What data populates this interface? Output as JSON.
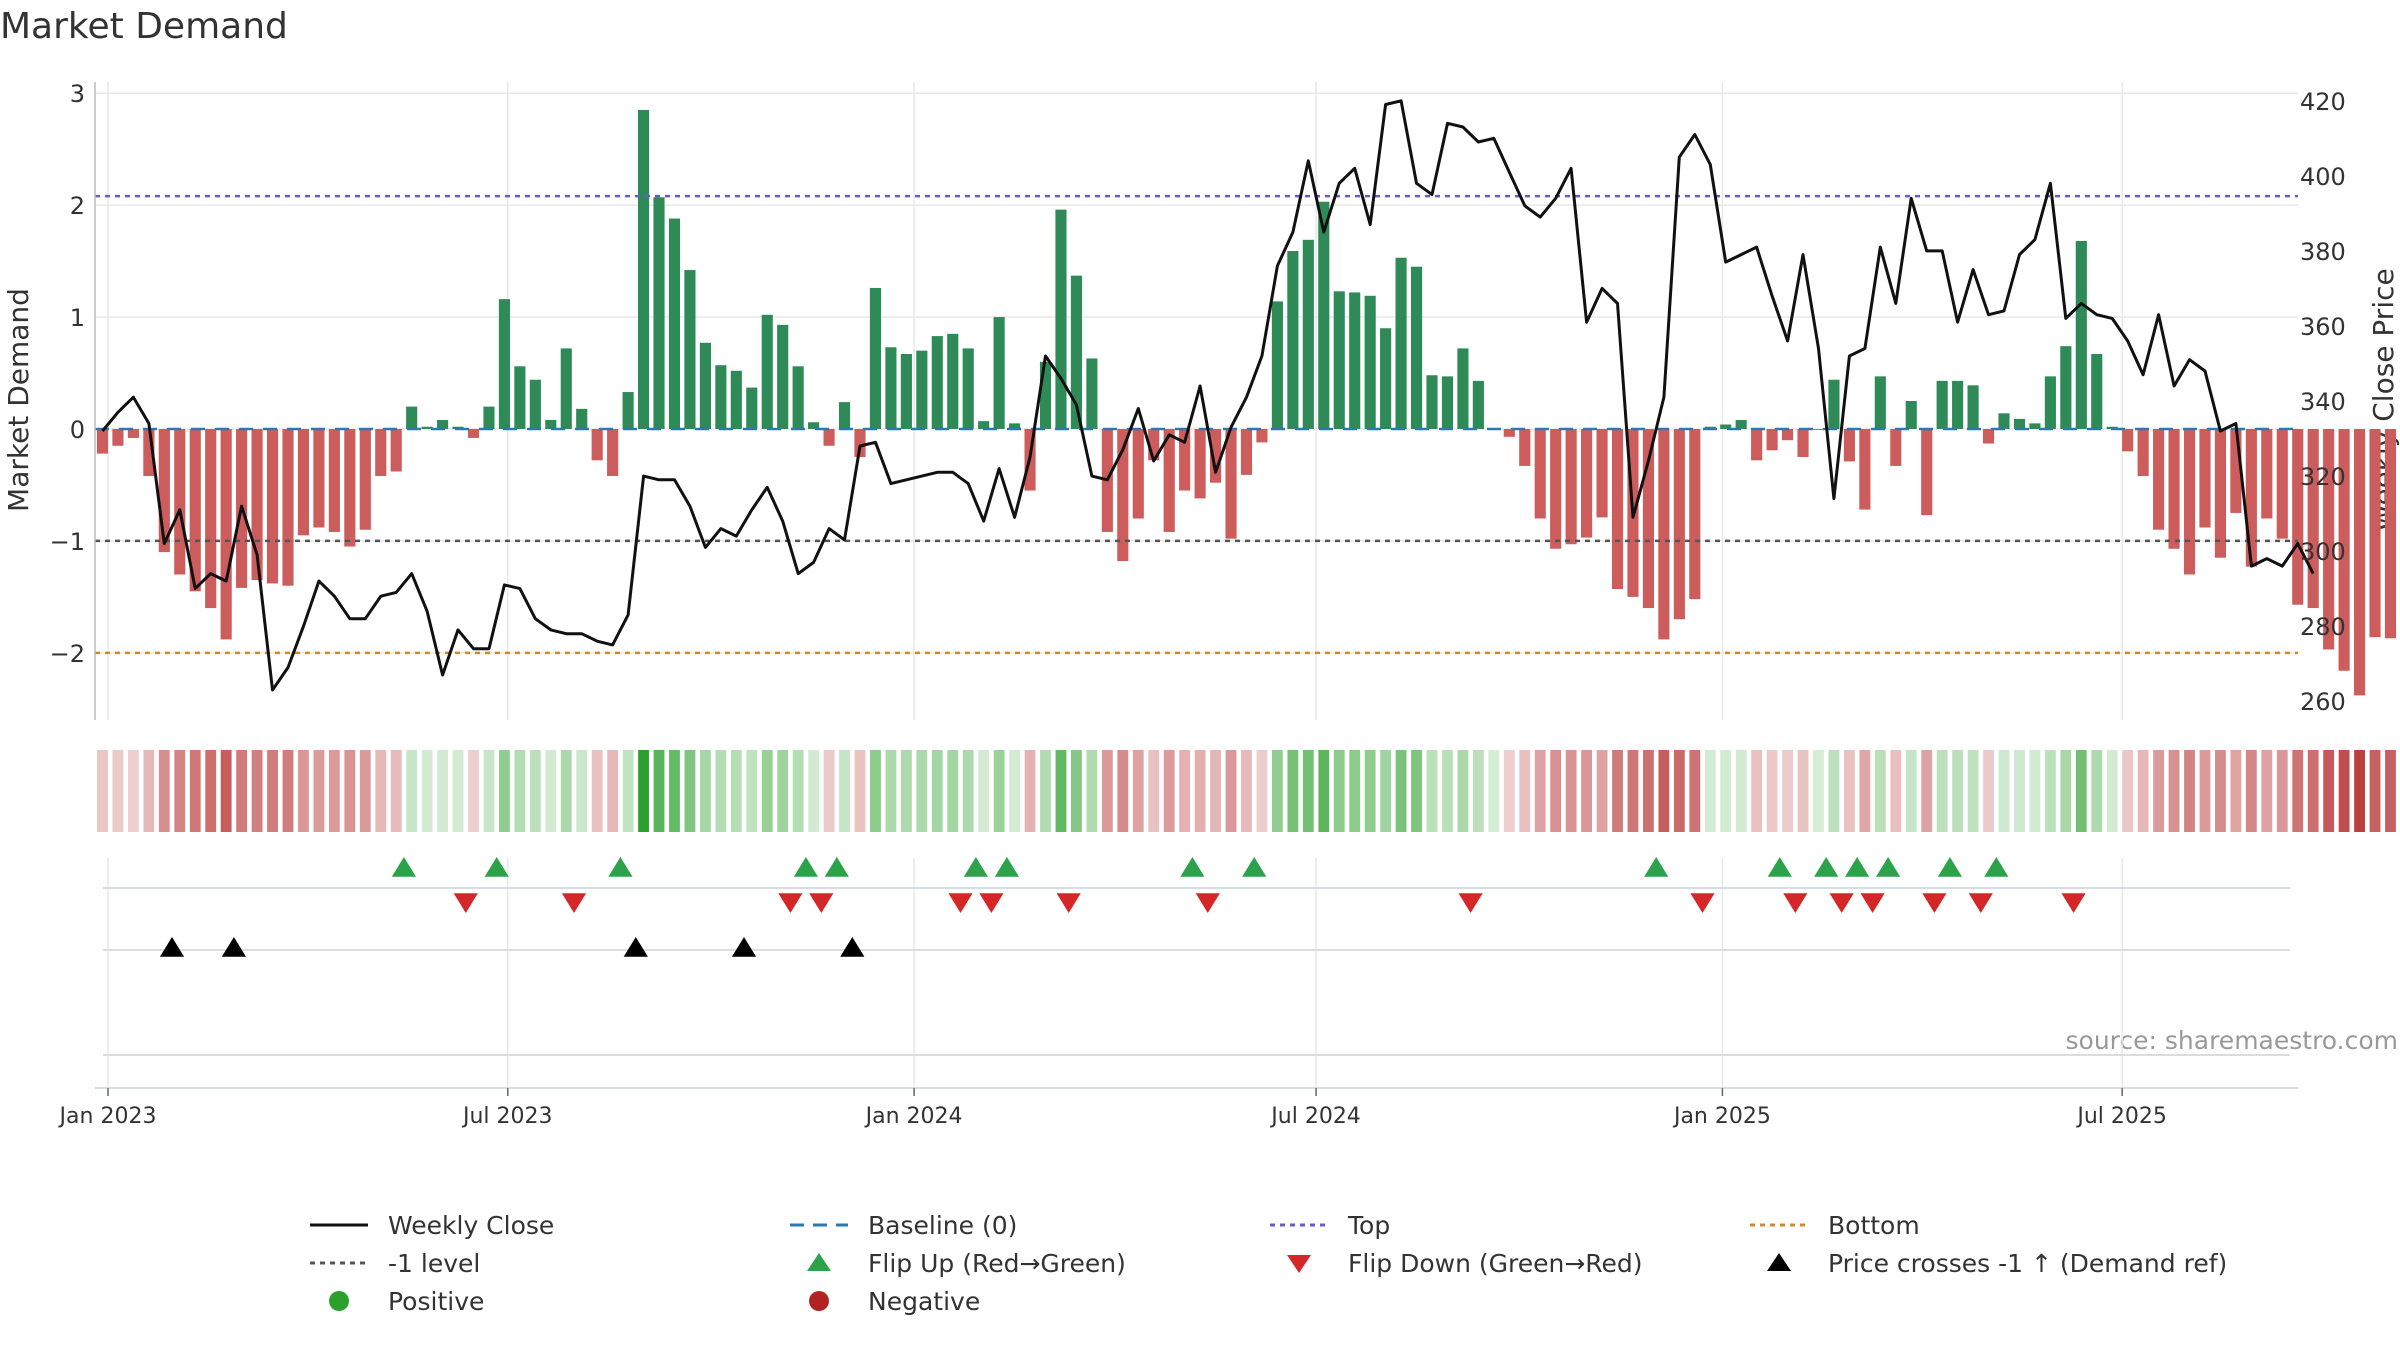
{
  "chart_data": {
    "type": "bar",
    "title": "Market Demand",
    "ylabel": "Market Demand",
    "y2label": "Weekly Close Price",
    "ylim": [
      -2.6,
      3.1
    ],
    "y2lim": [
      255,
      425
    ],
    "yticks": [
      -2,
      -1,
      0,
      1,
      2,
      3
    ],
    "y2ticks": [
      260,
      280,
      300,
      320,
      340,
      360,
      380,
      400,
      420
    ],
    "x_start": "2023-01-01",
    "x_end": "2025-09-15",
    "x_ticks": [
      {
        "date": "2023-01-01",
        "label": "Jan 2023"
      },
      {
        "date": "2023-07-01",
        "label": "Jul 2023"
      },
      {
        "date": "2024-01-01",
        "label": "Jan 2024"
      },
      {
        "date": "2024-07-01",
        "label": "Jul 2024"
      },
      {
        "date": "2025-01-01",
        "label": "Jan 2025"
      },
      {
        "date": "2025-07-01",
        "label": "Jul 2025"
      }
    ],
    "first_week": "2022-12-26",
    "demand": [
      -0.22,
      -0.15,
      -0.08,
      -0.42,
      -1.1,
      -1.3,
      -1.45,
      -1.6,
      -1.88,
      -1.42,
      -1.35,
      -1.38,
      -1.4,
      -0.95,
      -0.88,
      -0.92,
      -1.05,
      -0.9,
      -0.42,
      -0.38,
      0.2,
      0.02,
      0.08,
      0.02,
      -0.08,
      0.2,
      1.16,
      0.56,
      0.44,
      0.08,
      0.72,
      0.18,
      -0.28,
      -0.42,
      0.33,
      2.85,
      2.07,
      1.88,
      1.42,
      0.77,
      0.57,
      0.52,
      0.37,
      1.02,
      0.93,
      0.56,
      0.06,
      -0.15,
      0.24,
      -0.25,
      1.26,
      0.73,
      0.67,
      0.7,
      0.83,
      0.85,
      0.72,
      0.07,
      1.0,
      0.05,
      -0.55,
      0.6,
      1.96,
      1.37,
      0.63,
      -0.92,
      -1.18,
      -0.8,
      -0.28,
      -0.92,
      -0.55,
      -0.62,
      -0.48,
      -0.98,
      -0.41,
      -0.12,
      1.14,
      1.59,
      1.69,
      2.03,
      1.23,
      1.22,
      1.19,
      0.9,
      1.53,
      1.45,
      0.48,
      0.47,
      0.72,
      0.43,
      0.0,
      -0.07,
      -0.33,
      -0.8,
      -1.07,
      -1.03,
      -0.97,
      -0.79,
      -1.43,
      -1.5,
      -1.6,
      -1.88,
      -1.7,
      -1.52,
      0.02,
      0.04,
      0.08,
      -0.28,
      -0.19,
      -0.1,
      -0.25,
      0.0,
      0.44,
      -0.29,
      -0.72,
      0.47,
      -0.33,
      0.25,
      -0.77,
      0.43,
      0.43,
      0.39,
      -0.13,
      0.14,
      0.09,
      0.05,
      0.47,
      0.74,
      1.68,
      0.67,
      0.02,
      -0.2,
      -0.42,
      -0.9,
      -1.07,
      -1.3,
      -0.88,
      -1.15,
      -0.75,
      -1.23,
      -0.8,
      -0.98,
      -1.57,
      -1.6,
      -1.97,
      -2.16,
      -2.38,
      -1.86,
      -1.87
    ],
    "close": [
      332,
      337,
      341,
      334,
      302,
      311,
      290,
      294,
      292,
      312,
      299,
      263,
      269,
      280,
      292,
      288,
      282,
      282,
      288,
      289,
      294,
      284,
      267,
      279,
      274,
      274,
      291,
      290,
      282,
      279,
      278,
      278,
      276,
      275,
      283,
      320,
      319,
      319,
      312,
      301,
      306,
      304,
      311,
      317,
      308,
      294,
      297,
      306,
      303,
      328,
      329,
      318,
      319,
      320,
      321,
      321,
      318,
      308,
      322,
      309,
      325,
      352,
      346,
      339,
      320,
      319,
      327,
      338,
      324,
      331,
      329,
      344,
      321,
      333,
      341,
      352,
      376,
      385,
      404,
      385,
      398,
      402,
      387,
      419,
      420,
      398,
      395,
      414,
      413,
      409,
      410,
      401,
      392,
      389,
      394,
      402,
      361,
      370,
      366,
      309,
      324,
      341,
      405,
      411,
      403,
      377,
      379,
      381,
      368,
      356,
      379,
      354,
      314,
      352,
      354,
      381,
      366,
      394,
      380,
      380,
      361,
      375,
      363,
      364,
      379,
      383,
      398,
      362,
      366,
      363,
      362,
      356,
      347,
      363,
      344,
      351,
      348,
      332,
      334,
      296,
      298,
      296,
      302,
      294
    ],
    "flip_up": [
      "2023-05-15",
      "2023-06-26",
      "2023-08-21",
      "2023-11-13",
      "2023-11-27",
      "2024-01-29",
      "2024-02-12",
      "2024-05-06",
      "2024-06-03",
      "2024-12-02",
      "2025-01-27",
      "2025-02-17",
      "2025-03-03",
      "2025-03-17",
      "2025-04-14",
      "2025-05-05"
    ],
    "flip_down": [
      "2023-06-12",
      "2023-07-31",
      "2023-11-06",
      "2023-11-20",
      "2024-01-22",
      "2024-02-05",
      "2024-03-11",
      "2024-05-13",
      "2024-09-09",
      "2024-12-23",
      "2025-02-03",
      "2025-02-24",
      "2025-03-10",
      "2025-04-07",
      "2025-04-28",
      "2025-06-09"
    ],
    "price_cross": [
      "2023-01-30",
      "2023-02-27",
      "2023-08-28",
      "2023-10-16",
      "2023-12-04"
    ],
    "top_level": 2.08,
    "minus1_level": -1.0,
    "bottom_level": -2.0,
    "legend": [
      {
        "key": "close",
        "label": "Weekly Close",
        "symbol": "line",
        "color": "#111111"
      },
      {
        "key": "baseline",
        "label": "Baseline (0)",
        "symbol": "dash",
        "color": "#2a7ab0"
      },
      {
        "key": "top",
        "label": "Top",
        "symbol": "dot",
        "color": "#6a5acd"
      },
      {
        "key": "bottom",
        "label": "Bottom",
        "symbol": "dot",
        "color": "#d08a2c"
      },
      {
        "key": "minus1",
        "label": "-1 level",
        "symbol": "dot",
        "color": "#555555"
      },
      {
        "key": "flip_up",
        "label": "Flip Up (Red→Green)",
        "symbol": "tri-up",
        "color": "#2ca24a"
      },
      {
        "key": "flip_down",
        "label": "Flip Down (Green→Red)",
        "symbol": "tri-down",
        "color": "#d62728"
      },
      {
        "key": "price_cross",
        "label": "Price crosses -1 ↑ (Demand ref)",
        "symbol": "tri-up",
        "color": "#000000"
      },
      {
        "key": "positive",
        "label": "Positive",
        "symbol": "circle",
        "color": "#2ca02c"
      },
      {
        "key": "negative",
        "label": "Negative",
        "symbol": "circle",
        "color": "#b22222"
      }
    ]
  },
  "colors": {
    "positive_bar": "#2e8b57",
    "negative_bar": "#cd5c5c",
    "grid": "#e8e8e8"
  },
  "source": "source: sharemaestro.com"
}
